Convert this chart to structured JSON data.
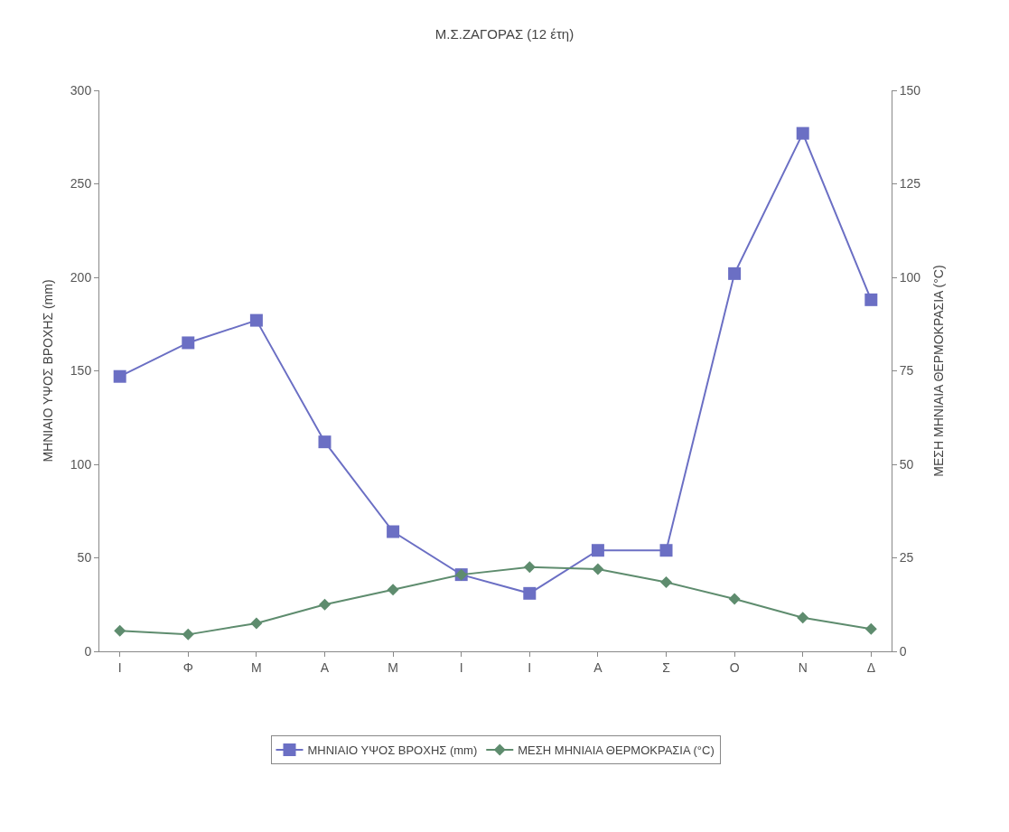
{
  "chart_data": {
    "type": "line",
    "title": "Μ.Σ.ΖΑΓΟΡΑΣ (12 έτη)",
    "ylabel": "ΜΗΝΙΑΙΟ ΥΨΟΣ ΒΡΟΧΗΣ (mm)",
    "y2label": "ΜΕΣΗ ΜΗΝΙΑΙΑ ΘΕΡΜΟΚΡΑΣΙΑ (°C)",
    "categories": [
      "Ι",
      "Φ",
      "Μ",
      "Α",
      "Μ",
      "Ι",
      "Ι",
      "Α",
      "Σ",
      "Ο",
      "Ν",
      "Δ"
    ],
    "series": [
      {
        "name": "ΜΗΝΙΑΙΟ ΥΨΟΣ ΒΡΟΧΗΣ (mm)",
        "color": "#6b6fc4",
        "marker": "square",
        "values": [
          147,
          165,
          177,
          112,
          64,
          41,
          31,
          54,
          54,
          202,
          277,
          188
        ]
      },
      {
        "name": "ΜΕΣΗ ΜΗΝΙΑΙΑ ΘΕΡΜΟΚΡΑΣΙΑ (°C)",
        "color": "#5e8c6e",
        "marker": "diamond",
        "axis": "y2",
        "values": [
          5.5,
          4.5,
          7.5,
          12.5,
          16.5,
          20.5,
          22.5,
          22,
          18.5,
          14,
          9,
          6
        ]
      }
    ],
    "ylim": [
      0,
      300
    ],
    "yticks": [
      0,
      50,
      100,
      150,
      200,
      250,
      300
    ],
    "y2lim": [
      0,
      150
    ],
    "y2ticks": [
      0,
      25,
      50,
      75,
      100,
      125,
      150
    ],
    "legend": "bottom",
    "line_style": "solid"
  }
}
